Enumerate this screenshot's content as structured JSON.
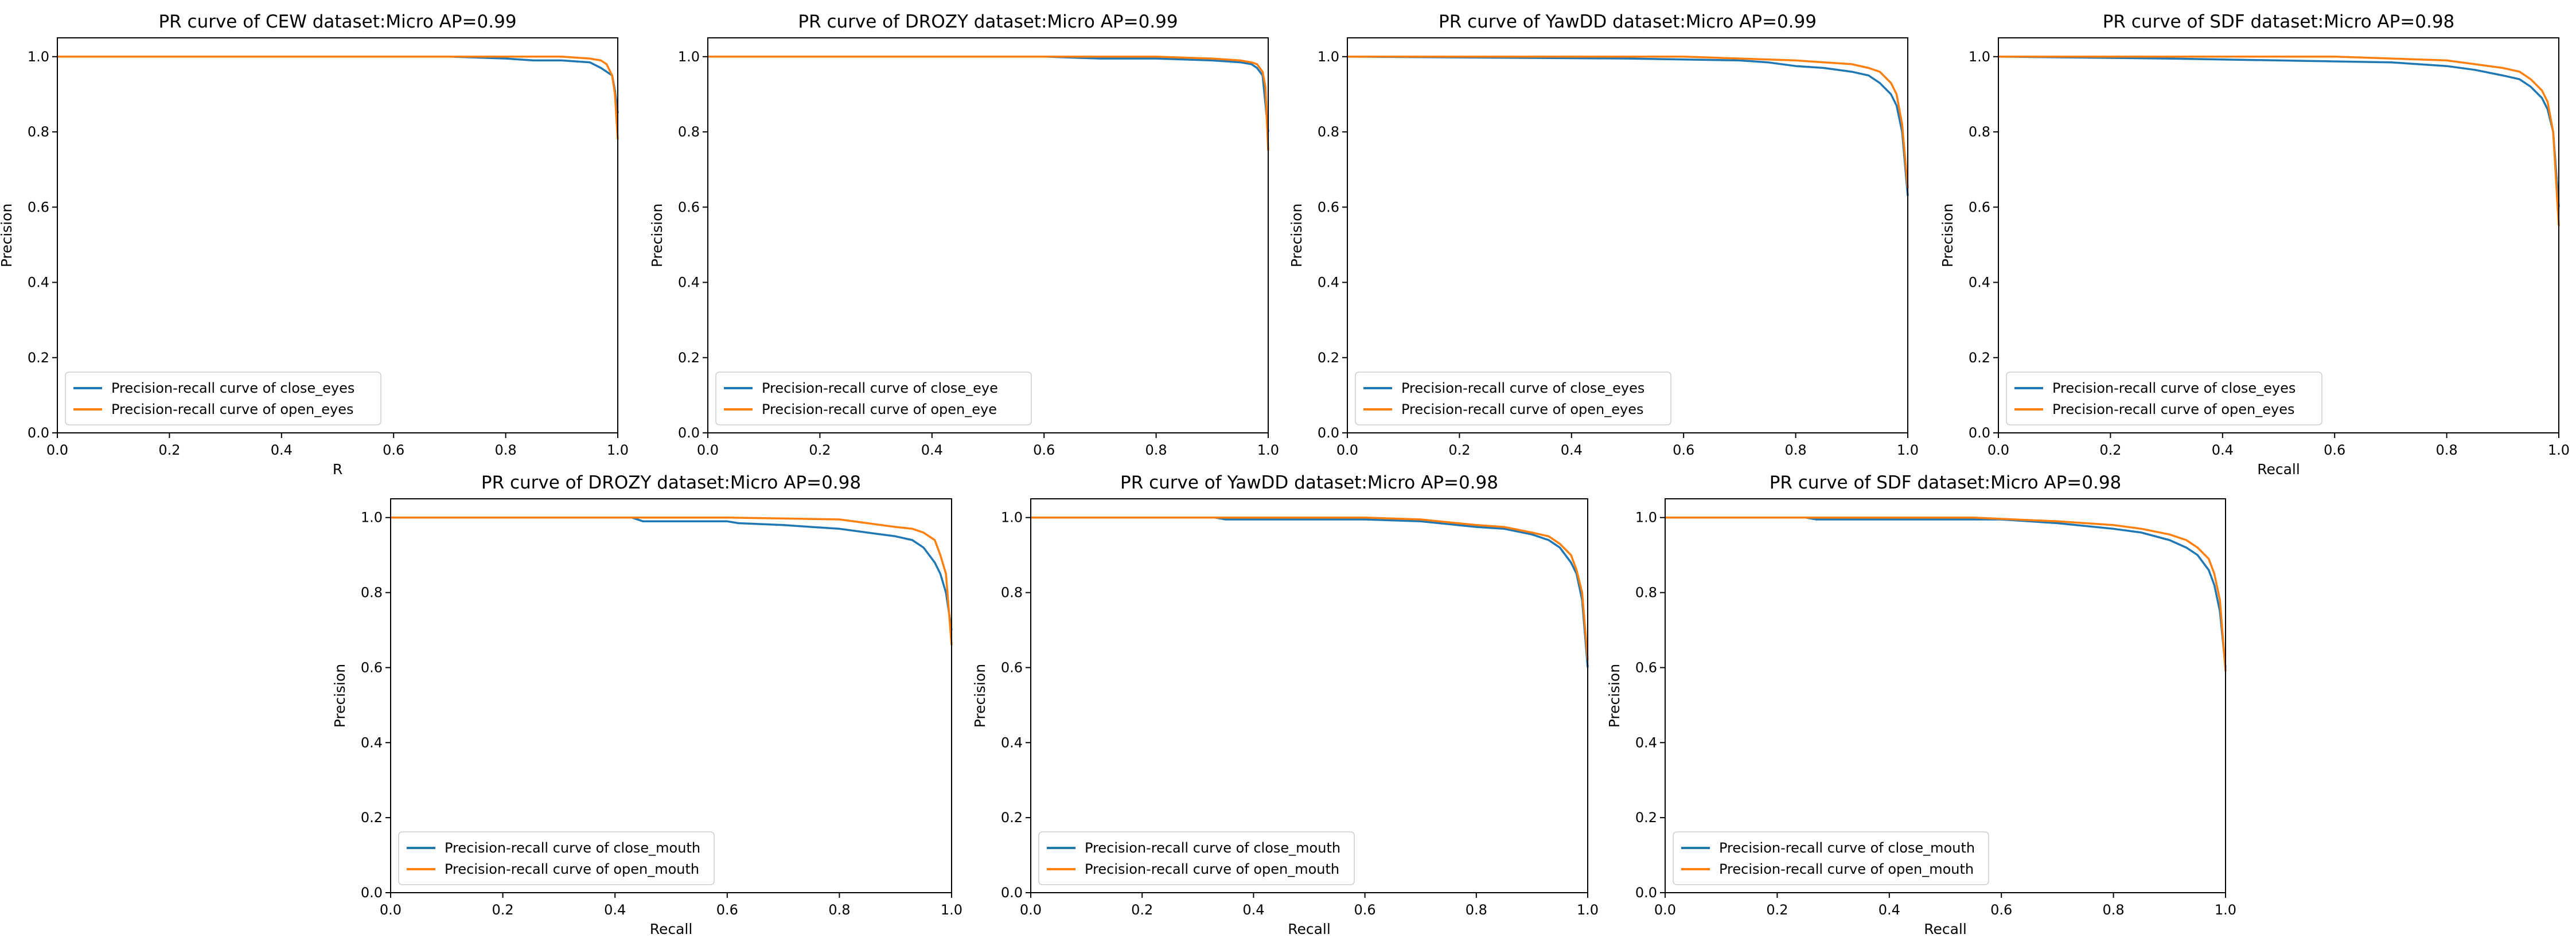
{
  "figure": {
    "colors": {
      "series_1": "#1f77b4",
      "series_2": "#ff7f0e",
      "axes": "#000000"
    }
  },
  "chart_data": [
    {
      "type": "line",
      "title": "PR curve of CEW dataset:Micro AP=0.99",
      "xlabel": "R",
      "ylabel": "Precision",
      "xlim": [
        0.0,
        1.0
      ],
      "ylim": [
        0.0,
        1.05
      ],
      "xticks": [
        "0.0",
        "0.2",
        "0.4",
        "0.6",
        "0.8",
        "1.0"
      ],
      "yticks": [
        "0.0",
        "0.2",
        "0.4",
        "0.6",
        "0.8",
        "1.0"
      ],
      "grid": false,
      "legend": "lower-left",
      "series": [
        {
          "name": "Precision-recall curve of close_eyes",
          "x": [
            0.0,
            0.7,
            0.8,
            0.85,
            0.9,
            0.95,
            0.97,
            0.98,
            0.99,
            0.995,
            1.0
          ],
          "y": [
            1.0,
            1.0,
            0.995,
            0.99,
            0.99,
            0.985,
            0.97,
            0.96,
            0.95,
            0.91,
            0.85
          ]
        },
        {
          "name": "Precision-recall curve of open_eyes",
          "x": [
            0.0,
            0.8,
            0.9,
            0.95,
            0.97,
            0.98,
            0.99,
            0.995,
            1.0
          ],
          "y": [
            1.0,
            1.0,
            1.0,
            0.995,
            0.99,
            0.98,
            0.95,
            0.9,
            0.78
          ]
        }
      ]
    },
    {
      "type": "line",
      "title": "PR curve of DROZY dataset:Micro AP=0.99",
      "xlabel": "",
      "ylabel": "Precision",
      "xlim": [
        0.0,
        1.0
      ],
      "ylim": [
        0.0,
        1.05
      ],
      "xticks": [
        "0.0",
        "0.2",
        "0.4",
        "0.6",
        "0.8",
        "1.0"
      ],
      "yticks": [
        "0.0",
        "0.2",
        "0.4",
        "0.6",
        "0.8",
        "1.0"
      ],
      "grid": false,
      "legend": "lower-left",
      "series": [
        {
          "name": "Precision-recall curve of close_eye",
          "x": [
            0.0,
            0.6,
            0.7,
            0.8,
            0.9,
            0.95,
            0.97,
            0.98,
            0.99,
            1.0
          ],
          "y": [
            1.0,
            1.0,
            0.995,
            0.995,
            0.99,
            0.985,
            0.98,
            0.97,
            0.95,
            0.8
          ]
        },
        {
          "name": "Precision-recall curve of open_eye",
          "x": [
            0.0,
            0.8,
            0.9,
            0.95,
            0.97,
            0.98,
            0.99,
            0.995,
            1.0
          ],
          "y": [
            1.0,
            1.0,
            0.995,
            0.99,
            0.985,
            0.98,
            0.96,
            0.92,
            0.75
          ]
        }
      ]
    },
    {
      "type": "line",
      "title": "PR curve of YawDD dataset:Micro AP=0.99",
      "xlabel": "",
      "ylabel": "Precision",
      "xlim": [
        0.0,
        1.0
      ],
      "ylim": [
        0.0,
        1.05
      ],
      "xticks": [
        "0.0",
        "0.2",
        "0.4",
        "0.6",
        "0.8",
        "1.0"
      ],
      "yticks": [
        "0.0",
        "0.2",
        "0.4",
        "0.6",
        "0.8",
        "1.0"
      ],
      "grid": false,
      "legend": "lower-left",
      "series": [
        {
          "name": "Precision-recall curve of close_eyes",
          "x": [
            0.0,
            0.5,
            0.7,
            0.75,
            0.8,
            0.85,
            0.9,
            0.93,
            0.95,
            0.97,
            0.98,
            0.99,
            1.0
          ],
          "y": [
            1.0,
            0.995,
            0.99,
            0.985,
            0.975,
            0.97,
            0.96,
            0.95,
            0.93,
            0.9,
            0.87,
            0.8,
            0.63
          ]
        },
        {
          "name": "Precision-recall curve of open_eyes",
          "x": [
            0.0,
            0.6,
            0.8,
            0.85,
            0.9,
            0.93,
            0.95,
            0.97,
            0.98,
            0.99,
            1.0
          ],
          "y": [
            1.0,
            1.0,
            0.99,
            0.985,
            0.98,
            0.97,
            0.96,
            0.93,
            0.9,
            0.82,
            0.65
          ]
        }
      ]
    },
    {
      "type": "line",
      "title": "PR curve of SDF dataset:Micro AP=0.98",
      "xlabel": "Recall",
      "ylabel": "Precision",
      "xlim": [
        0.0,
        1.0
      ],
      "ylim": [
        0.0,
        1.05
      ],
      "xticks": [
        "0.0",
        "0.2",
        "0.4",
        "0.6",
        "0.8",
        "1.0"
      ],
      "yticks": [
        "0.0",
        "0.2",
        "0.4",
        "0.6",
        "0.8",
        "1.0"
      ],
      "grid": false,
      "legend": "lower-left",
      "series": [
        {
          "name": "Precision-recall curve of close_eyes",
          "x": [
            0.0,
            0.3,
            0.5,
            0.7,
            0.8,
            0.85,
            0.9,
            0.93,
            0.95,
            0.97,
            0.98,
            0.99,
            1.0
          ],
          "y": [
            1.0,
            0.995,
            0.99,
            0.985,
            0.975,
            0.965,
            0.95,
            0.94,
            0.92,
            0.89,
            0.86,
            0.8,
            0.6
          ]
        },
        {
          "name": "Precision-recall curve of open_eyes",
          "x": [
            0.0,
            0.6,
            0.8,
            0.85,
            0.9,
            0.93,
            0.95,
            0.97,
            0.98,
            0.99,
            1.0
          ],
          "y": [
            1.0,
            1.0,
            0.99,
            0.98,
            0.97,
            0.96,
            0.94,
            0.91,
            0.88,
            0.8,
            0.55
          ]
        }
      ]
    },
    {
      "type": "line",
      "title": "PR curve of DROZY dataset:Micro AP=0.98",
      "xlabel": "Recall",
      "ylabel": "Precision",
      "xlim": [
        0.0,
        1.0
      ],
      "ylim": [
        0.0,
        1.05
      ],
      "xticks": [
        "0.0",
        "0.2",
        "0.4",
        "0.6",
        "0.8",
        "1.0"
      ],
      "yticks": [
        "0.0",
        "0.2",
        "0.4",
        "0.6",
        "0.8",
        "1.0"
      ],
      "grid": false,
      "legend": "lower-left",
      "series": [
        {
          "name": "Precision-recall curve of close_mouth",
          "x": [
            0.0,
            0.43,
            0.45,
            0.6,
            0.62,
            0.7,
            0.75,
            0.8,
            0.85,
            0.9,
            0.93,
            0.95,
            0.97,
            0.98,
            0.99,
            1.0
          ],
          "y": [
            1.0,
            1.0,
            0.99,
            0.99,
            0.985,
            0.98,
            0.975,
            0.97,
            0.96,
            0.95,
            0.94,
            0.92,
            0.88,
            0.85,
            0.8,
            0.7
          ]
        },
        {
          "name": "Precision-recall curve of open_mouth",
          "x": [
            0.0,
            0.6,
            0.8,
            0.85,
            0.9,
            0.93,
            0.95,
            0.97,
            0.98,
            0.99,
            1.0
          ],
          "y": [
            1.0,
            1.0,
            0.995,
            0.985,
            0.975,
            0.97,
            0.96,
            0.94,
            0.9,
            0.85,
            0.66
          ]
        }
      ]
    },
    {
      "type": "line",
      "title": "PR curve of YawDD dataset:Micro AP=0.98",
      "xlabel": "Recall",
      "ylabel": "Precision",
      "xlim": [
        0.0,
        1.0
      ],
      "ylim": [
        0.0,
        1.05
      ],
      "xticks": [
        "0.0",
        "0.2",
        "0.4",
        "0.6",
        "0.8",
        "1.0"
      ],
      "yticks": [
        "0.0",
        "0.2",
        "0.4",
        "0.6",
        "0.8",
        "1.0"
      ],
      "grid": false,
      "legend": "lower-left",
      "series": [
        {
          "name": "Precision-recall curve of close_mouth",
          "x": [
            0.0,
            0.33,
            0.35,
            0.6,
            0.7,
            0.8,
            0.85,
            0.9,
            0.93,
            0.95,
            0.97,
            0.98,
            0.99,
            1.0
          ],
          "y": [
            1.0,
            1.0,
            0.995,
            0.995,
            0.99,
            0.975,
            0.97,
            0.955,
            0.94,
            0.92,
            0.88,
            0.85,
            0.78,
            0.6
          ]
        },
        {
          "name": "Precision-recall curve of open_mouth",
          "x": [
            0.0,
            0.6,
            0.7,
            0.8,
            0.85,
            0.9,
            0.93,
            0.95,
            0.97,
            0.98,
            0.99,
            1.0
          ],
          "y": [
            1.0,
            1.0,
            0.995,
            0.98,
            0.975,
            0.96,
            0.95,
            0.93,
            0.9,
            0.86,
            0.8,
            0.62
          ]
        }
      ]
    },
    {
      "type": "line",
      "title": "PR curve of SDF dataset:Micro AP=0.98",
      "xlabel": "Recall",
      "ylabel": "Precision",
      "xlim": [
        0.0,
        1.0
      ],
      "ylim": [
        0.0,
        1.05
      ],
      "xticks": [
        "0.0",
        "0.2",
        "0.4",
        "0.6",
        "0.8",
        "1.0"
      ],
      "yticks": [
        "0.0",
        "0.2",
        "0.4",
        "0.6",
        "0.8",
        "1.0"
      ],
      "grid": false,
      "legend": "lower-left",
      "series": [
        {
          "name": "Precision-recall curve of close_mouth",
          "x": [
            0.0,
            0.25,
            0.27,
            0.6,
            0.7,
            0.8,
            0.85,
            0.9,
            0.93,
            0.95,
            0.97,
            0.98,
            0.99,
            1.0
          ],
          "y": [
            1.0,
            1.0,
            0.995,
            0.995,
            0.985,
            0.97,
            0.96,
            0.94,
            0.92,
            0.9,
            0.86,
            0.82,
            0.75,
            0.6
          ]
        },
        {
          "name": "Precision-recall curve of open_mouth",
          "x": [
            0.0,
            0.55,
            0.7,
            0.8,
            0.85,
            0.9,
            0.93,
            0.95,
            0.97,
            0.98,
            0.99,
            1.0
          ],
          "y": [
            1.0,
            1.0,
            0.99,
            0.98,
            0.97,
            0.955,
            0.94,
            0.92,
            0.89,
            0.85,
            0.78,
            0.59
          ]
        }
      ]
    }
  ]
}
